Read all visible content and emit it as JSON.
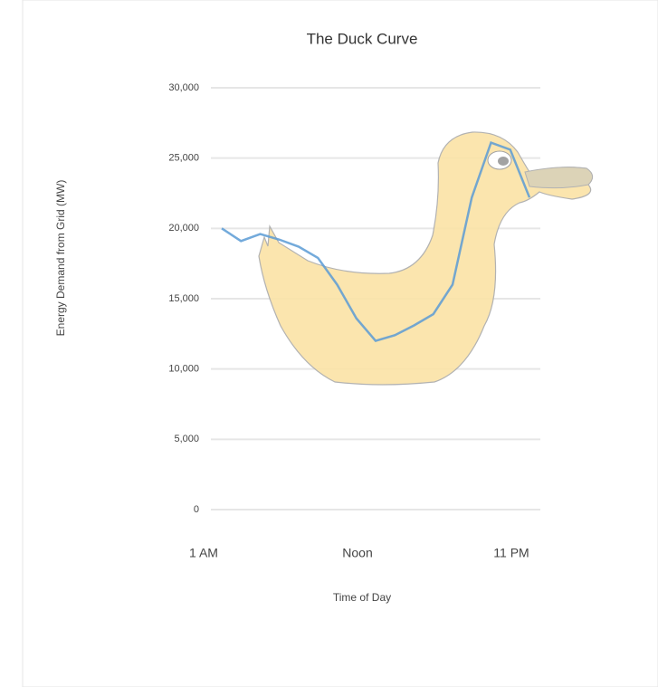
{
  "chart_data": {
    "type": "line",
    "title": "The Duck Curve",
    "x_label": "Time of Day",
    "y_label": "Energy Demand from Grid (MW)",
    "categories": [
      "1 AM",
      null,
      null,
      null,
      null,
      null,
      null,
      null,
      "Noon",
      null,
      null,
      null,
      null,
      null,
      null,
      null,
      "11 PM"
    ],
    "series": [
      {
        "name": "Energy Demand",
        "color": "#5b9bd5",
        "values": [
          20000,
          19100,
          19600,
          19200,
          18700,
          17900,
          16000,
          13600,
          12000,
          12400,
          13100,
          13900,
          16000,
          22200,
          26100,
          25600,
          22200
        ]
      }
    ],
    "ylim": [
      0,
      30000
    ],
    "yticks": [
      {
        "value": 0,
        "label": "0"
      },
      {
        "value": 5000,
        "label": "5,000"
      },
      {
        "value": 10000,
        "label": "10,000"
      },
      {
        "value": 15000,
        "label": "15,000"
      },
      {
        "value": 20000,
        "label": "20,000"
      },
      {
        "value": 25000,
        "label": "25,000"
      },
      {
        "value": 30000,
        "label": "30,000"
      }
    ],
    "grid": true
  }
}
